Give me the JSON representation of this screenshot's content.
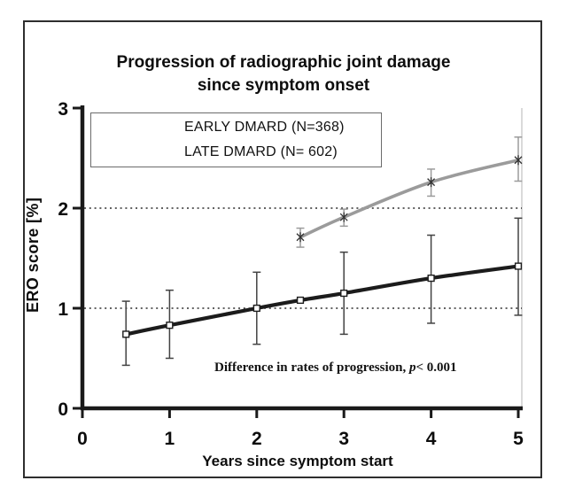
{
  "title": {
    "line1": "Progression of radiographic joint damage",
    "line2": "since symptom onset"
  },
  "chart_data": {
    "type": "line",
    "title": "Progression of radiographic joint damage since symptom onset",
    "xlabel": "Years since symptom start",
    "ylabel": "ERO score [%]",
    "xlim": [
      0,
      5
    ],
    "ylim": [
      0,
      3
    ],
    "xticks": [
      0,
      1,
      2,
      3,
      4,
      5
    ],
    "yticks": [
      0,
      1,
      2,
      3
    ],
    "gridlines_y": [
      1,
      2
    ],
    "grid_style": "dotted",
    "legend_position": "top-left",
    "series": [
      {
        "name": "EARLY DMARD (N=368)",
        "color": "#1c1c1c",
        "marker": "square",
        "x": [
          0.5,
          1,
          2,
          2.5,
          3,
          4,
          5
        ],
        "y": [
          0.74,
          0.83,
          1.0,
          1.08,
          1.15,
          1.3,
          1.42
        ],
        "err_low": [
          0.43,
          0.5,
          0.64,
          null,
          0.74,
          0.85,
          0.93
        ],
        "err_high": [
          1.07,
          1.18,
          1.36,
          null,
          1.56,
          1.73,
          1.9
        ]
      },
      {
        "name": "LATE DMARD (N= 602)",
        "color": "#9b9b9b",
        "marker": "star",
        "x": [
          2.5,
          3,
          4,
          5
        ],
        "y": [
          1.71,
          1.91,
          2.26,
          2.48
        ],
        "err_low": [
          1.61,
          1.82,
          2.12,
          2.27
        ],
        "err_high": [
          1.8,
          1.99,
          2.39,
          2.71
        ]
      }
    ],
    "annotation": {
      "prefix": "Difference in rates of progression, ",
      "italic": "p",
      "suffix": "< 0.001"
    }
  }
}
